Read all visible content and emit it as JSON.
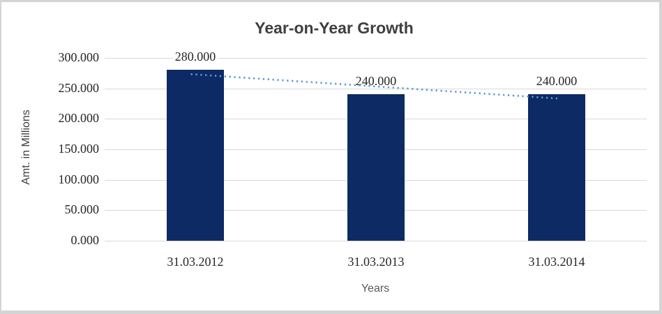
{
  "frame": {
    "border_color": "#d4d4d4",
    "background": "#ffffff"
  },
  "chart_data": {
    "type": "bar",
    "title": "Year-on-Year Growth",
    "categories": [
      "31.03.2012",
      "31.03.2013",
      "31.03.2014"
    ],
    "series": [
      {
        "name": "Amt. in Millions",
        "values": [
          280,
          240,
          240
        ]
      }
    ],
    "data_labels": [
      "280.000",
      "240.000",
      "240.000"
    ],
    "xlabel": "Years",
    "ylabel": "Amt. in Millions",
    "ylim": [
      0,
      300
    ],
    "yticks": [
      0,
      50,
      100,
      150,
      200,
      250,
      300
    ],
    "ytick_labels": [
      "0.000",
      "50.000",
      "100.000",
      "150.000",
      "200.000",
      "250.000",
      "300.000"
    ],
    "grid": true,
    "legend": "none",
    "bar_color": "#0d2a64",
    "gridline_color": "#d9d9d9",
    "title_color": "#3f3f3f",
    "tick_label_color": "#262626",
    "axis_title_color": "#595959",
    "trendline": {
      "type": "linear",
      "style": "dotted",
      "color": "#5b9bd5",
      "start_value": 273.3,
      "end_value": 233.3
    }
  }
}
